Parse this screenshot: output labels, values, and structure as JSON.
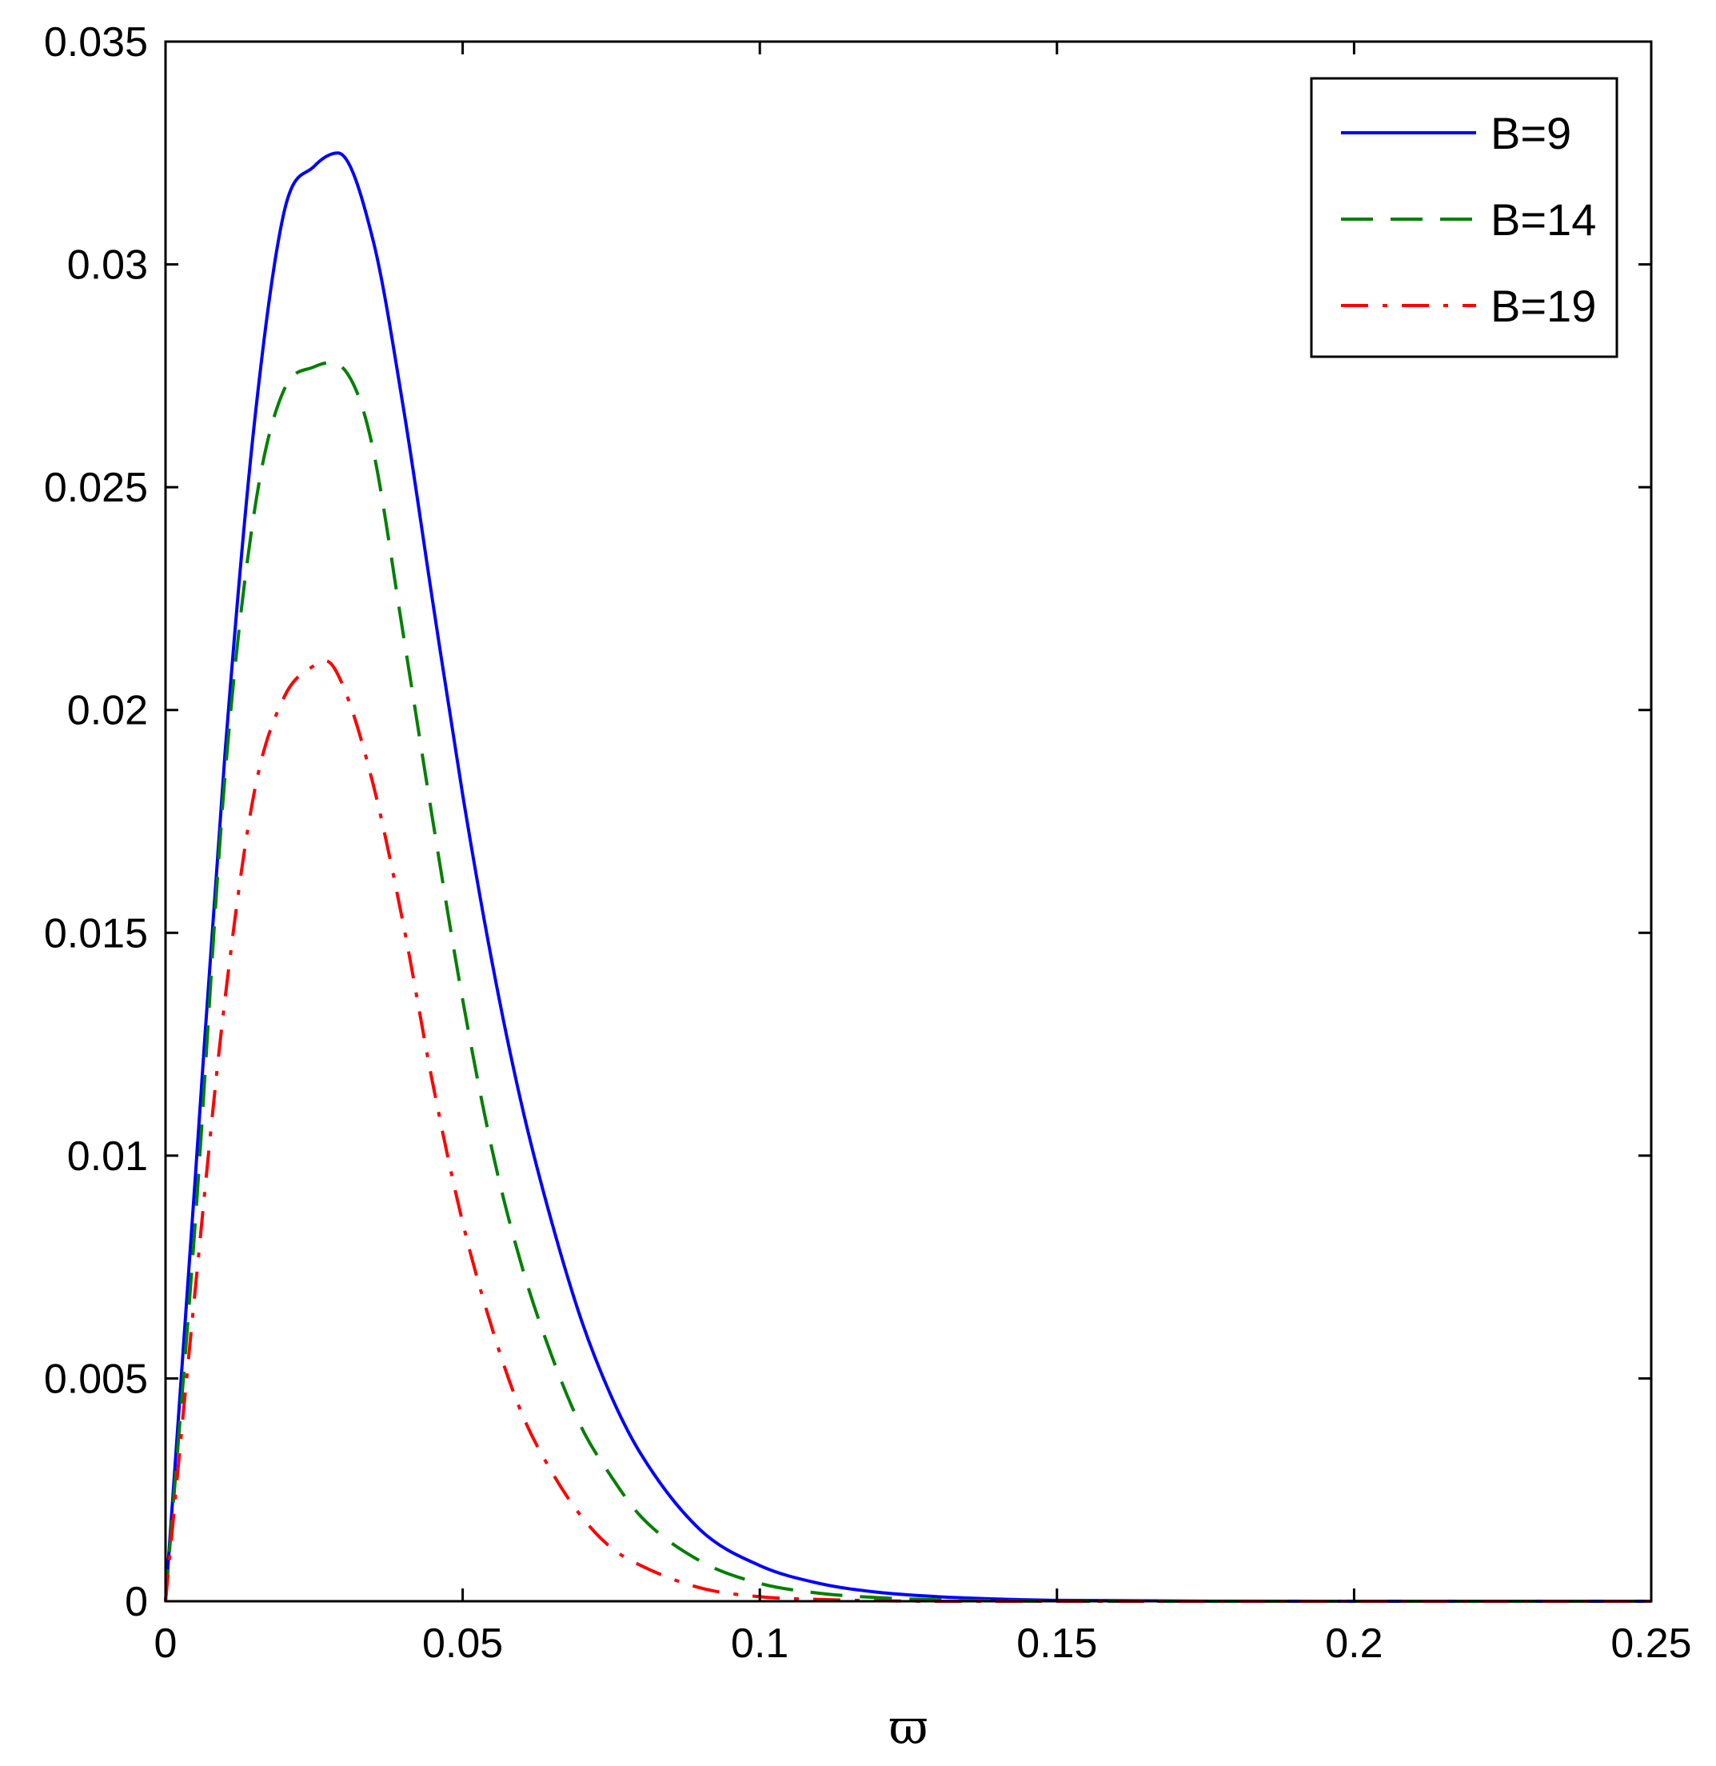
{
  "chart_data": {
    "type": "line",
    "title": "",
    "xlabel": "ϖ",
    "ylabel": "",
    "xlim": [
      0,
      0.25
    ],
    "ylim": [
      0,
      0.035
    ],
    "x_ticks": [
      "0",
      "0.05",
      "0.1",
      "0.15",
      "0.2",
      "0.25"
    ],
    "y_ticks": [
      "0",
      "0.005",
      "0.01",
      "0.015",
      "0.02",
      "0.025",
      "0.03",
      "0.035"
    ],
    "grid": false,
    "legend_position": "top-right",
    "series": [
      {
        "name": "B=9",
        "color": "#0000ff",
        "style": "solid",
        "x": [
          0,
          0.005,
          0.01,
          0.015,
          0.02,
          0.025,
          0.029,
          0.035,
          0.04,
          0.045,
          0.05,
          0.055,
          0.06,
          0.065,
          0.07,
          0.075,
          0.08,
          0.09,
          0.1,
          0.11,
          0.12,
          0.13,
          0.14,
          0.15,
          0.2,
          0.25
        ],
        "y": [
          0,
          0.0095,
          0.019,
          0.0265,
          0.0312,
          0.0322,
          0.0325,
          0.0305,
          0.0268,
          0.0224,
          0.0181,
          0.0143,
          0.0111,
          0.0085,
          0.0063,
          0.0046,
          0.0033,
          0.0016,
          0.0008,
          0.0004,
          0.0002,
          0.0001,
          5e-05,
          2e-05,
          0,
          0
        ]
      },
      {
        "name": "B=14",
        "color": "#008000",
        "style": "dashed",
        "x": [
          0,
          0.005,
          0.01,
          0.015,
          0.02,
          0.025,
          0.028,
          0.032,
          0.035,
          0.04,
          0.045,
          0.05,
          0.055,
          0.06,
          0.065,
          0.07,
          0.075,
          0.08,
          0.09,
          0.1,
          0.11,
          0.12,
          0.13,
          0.14,
          0.15,
          0.2,
          0.25
        ],
        "y": [
          0,
          0.0085,
          0.0185,
          0.0245,
          0.0272,
          0.0277,
          0.0278,
          0.0272,
          0.0258,
          0.0217,
          0.0175,
          0.0135,
          0.0101,
          0.0075,
          0.0055,
          0.0039,
          0.0028,
          0.0019,
          0.0009,
          0.0004,
          0.00018,
          8e-05,
          3e-05,
          1e-05,
          0,
          0,
          0
        ]
      },
      {
        "name": "B=19",
        "color": "#ff0000",
        "style": "dashdot",
        "x": [
          0,
          0.005,
          0.01,
          0.015,
          0.02,
          0.025,
          0.027,
          0.03,
          0.035,
          0.04,
          0.045,
          0.05,
          0.055,
          0.06,
          0.065,
          0.07,
          0.075,
          0.08,
          0.09,
          0.1,
          0.11,
          0.12,
          0.13,
          0.14,
          0.15,
          0.2,
          0.25
        ],
        "y": [
          0,
          0.007,
          0.0135,
          0.0182,
          0.0203,
          0.021,
          0.0211,
          0.0205,
          0.0183,
          0.0152,
          0.0116,
          0.0085,
          0.0061,
          0.0042,
          0.0029,
          0.0019,
          0.0012,
          0.0008,
          0.0003,
          0.0001,
          4e-05,
          1e-05,
          0,
          0,
          0,
          0,
          0
        ]
      }
    ]
  }
}
